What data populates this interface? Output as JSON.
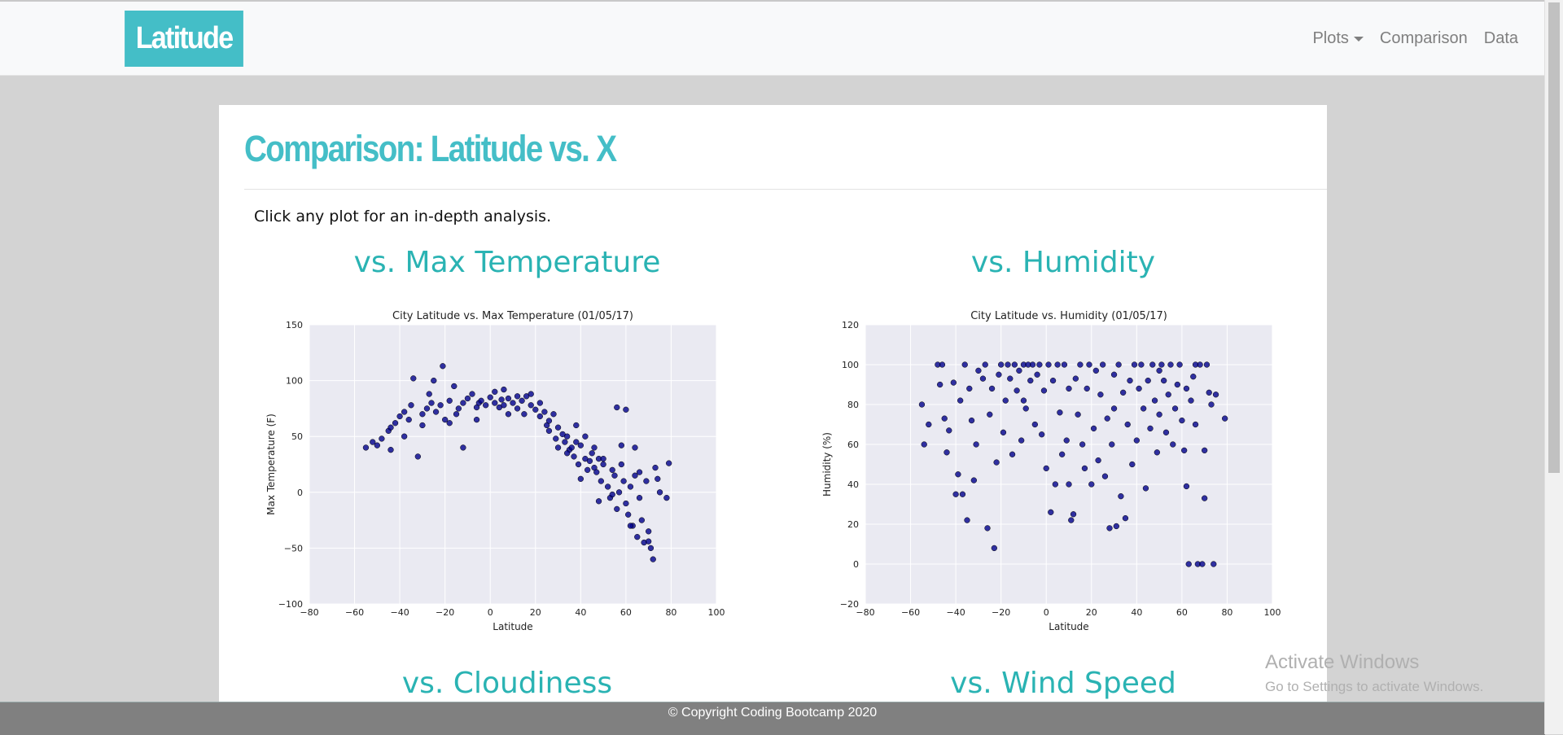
{
  "navbar": {
    "brand": "Latitude",
    "items": [
      {
        "label": "Plots",
        "has_dropdown": true
      },
      {
        "label": "Comparison"
      },
      {
        "label": "Data"
      }
    ]
  },
  "main": {
    "title": "Comparison: Latitude vs. X",
    "intro": "Click any plot for an in-depth analysis.",
    "sections": [
      {
        "heading": "vs. Max Temperature"
      },
      {
        "heading": "vs. Humidity"
      },
      {
        "heading": "vs. Cloudiness"
      },
      {
        "heading": "vs. Wind Speed"
      }
    ]
  },
  "footer": {
    "text": "© Copyright Coding Bootcamp 2020"
  },
  "watermark": {
    "line1": "Activate Windows",
    "line2": "Go to Settings to activate Windows."
  },
  "colors": {
    "accent": "#44bec7",
    "heading": "#2ab3b3",
    "marker": "#00008b",
    "plot_bg": "#eaeaf2",
    "footer": "#808080"
  },
  "chart_data": [
    {
      "type": "scatter",
      "title": "City Latitude vs. Max Temperature (01/05/17)",
      "xlabel": "Latitude",
      "ylabel": "Max Temperature (F)",
      "xlim": [
        -80,
        100
      ],
      "ylim": [
        -100,
        150
      ],
      "xticks": [
        "−80",
        "−60",
        "−40",
        "−20",
        "0",
        "20",
        "40",
        "60",
        "80",
        "100"
      ],
      "yticks": [
        "−100",
        "−50",
        "0",
        "50",
        "100",
        "150"
      ],
      "grid": true,
      "points": [
        [
          -55,
          40
        ],
        [
          -52,
          45
        ],
        [
          -48,
          48
        ],
        [
          -45,
          55
        ],
        [
          -44,
          58
        ],
        [
          -42,
          62
        ],
        [
          -40,
          68
        ],
        [
          -38,
          72
        ],
        [
          -36,
          65
        ],
        [
          -35,
          78
        ],
        [
          -34,
          102
        ],
        [
          -32,
          32
        ],
        [
          -30,
          70
        ],
        [
          -28,
          75
        ],
        [
          -26,
          80
        ],
        [
          -25,
          100
        ],
        [
          -24,
          72
        ],
        [
          -22,
          78
        ],
        [
          -21,
          113
        ],
        [
          -20,
          65
        ],
        [
          -18,
          82
        ],
        [
          -16,
          95
        ],
        [
          -15,
          70
        ],
        [
          -14,
          75
        ],
        [
          -12,
          80
        ],
        [
          -10,
          84
        ],
        [
          -8,
          88
        ],
        [
          -6,
          76
        ],
        [
          -5,
          80
        ],
        [
          -4,
          82
        ],
        [
          -2,
          78
        ],
        [
          0,
          85
        ],
        [
          2,
          80
        ],
        [
          4,
          76
        ],
        [
          5,
          83
        ],
        [
          6,
          78
        ],
        [
          8,
          84
        ],
        [
          10,
          80
        ],
        [
          12,
          75
        ],
        [
          14,
          82
        ],
        [
          15,
          70
        ],
        [
          16,
          86
        ],
        [
          18,
          78
        ],
        [
          20,
          74
        ],
        [
          22,
          68
        ],
        [
          24,
          72
        ],
        [
          25,
          60
        ],
        [
          26,
          55
        ],
        [
          28,
          70
        ],
        [
          29,
          48
        ],
        [
          30,
          58
        ],
        [
          32,
          52
        ],
        [
          33,
          45
        ],
        [
          34,
          50
        ],
        [
          35,
          38
        ],
        [
          36,
          40
        ],
        [
          37,
          32
        ],
        [
          38,
          45
        ],
        [
          39,
          25
        ],
        [
          40,
          42
        ],
        [
          42,
          30
        ],
        [
          43,
          20
        ],
        [
          44,
          28
        ],
        [
          45,
          35
        ],
        [
          46,
          22
        ],
        [
          47,
          18
        ],
        [
          48,
          30
        ],
        [
          49,
          10
        ],
        [
          50,
          25
        ],
        [
          52,
          5
        ],
        [
          53,
          -5
        ],
        [
          54,
          20
        ],
        [
          55,
          15
        ],
        [
          56,
          -15
        ],
        [
          57,
          0
        ],
        [
          58,
          25
        ],
        [
          59,
          10
        ],
        [
          60,
          -10
        ],
        [
          61,
          -20
        ],
        [
          62,
          5
        ],
        [
          63,
          -30
        ],
        [
          64,
          15
        ],
        [
          65,
          -40
        ],
        [
          66,
          -5
        ],
        [
          67,
          -25
        ],
        [
          68,
          -45
        ],
        [
          69,
          10
        ],
        [
          70,
          -35
        ],
        [
          71,
          -50
        ],
        [
          72,
          -60
        ],
        [
          73,
          22
        ],
        [
          75,
          0
        ],
        [
          78,
          -5
        ],
        [
          79,
          26
        ],
        [
          -44,
          38
        ],
        [
          -38,
          50
        ],
        [
          -30,
          60
        ],
        [
          -18,
          62
        ],
        [
          -12,
          40
        ],
        [
          -6,
          65
        ],
        [
          2,
          90
        ],
        [
          8,
          70
        ],
        [
          18,
          88
        ],
        [
          22,
          80
        ],
        [
          26,
          64
        ],
        [
          30,
          40
        ],
        [
          34,
          35
        ],
        [
          38,
          60
        ],
        [
          42,
          50
        ],
        [
          46,
          40
        ],
        [
          50,
          30
        ],
        [
          54,
          -2
        ],
        [
          58,
          42
        ],
        [
          62,
          -30
        ],
        [
          66,
          18
        ],
        [
          70,
          -44
        ],
        [
          74,
          12
        ],
        [
          -50,
          42
        ],
        [
          -27,
          88
        ],
        [
          6,
          92
        ],
        [
          12,
          86
        ],
        [
          40,
          12
        ],
        [
          48,
          -8
        ],
        [
          56,
          76
        ],
        [
          60,
          74
        ],
        [
          64,
          40
        ]
      ]
    },
    {
      "type": "scatter",
      "title": "City Latitude vs. Humidity (01/05/17)",
      "xlabel": "Latitude",
      "ylabel": "Humidity (%)",
      "xlim": [
        -80,
        100
      ],
      "ylim": [
        -20,
        120
      ],
      "xticks": [
        "−80",
        "−60",
        "−40",
        "−20",
        "0",
        "20",
        "40",
        "60",
        "80",
        "100"
      ],
      "yticks": [
        "−20",
        "0",
        "20",
        "40",
        "60",
        "80",
        "100",
        "120"
      ],
      "grid": true,
      "points": [
        [
          -55,
          80
        ],
        [
          -54,
          60
        ],
        [
          -52,
          70
        ],
        [
          -48,
          100
        ],
        [
          -47,
          90
        ],
        [
          -45,
          73
        ],
        [
          -44,
          56
        ],
        [
          -43,
          67
        ],
        [
          -41,
          91
        ],
        [
          -40,
          35
        ],
        [
          -39,
          45
        ],
        [
          -38,
          82
        ],
        [
          -37,
          35
        ],
        [
          -36,
          100
        ],
        [
          -35,
          22
        ],
        [
          -34,
          88
        ],
        [
          -33,
          72
        ],
        [
          -32,
          42
        ],
        [
          -31,
          60
        ],
        [
          -30,
          97
        ],
        [
          -28,
          93
        ],
        [
          -27,
          100
        ],
        [
          -26,
          18
        ],
        [
          -25,
          75
        ],
        [
          -24,
          88
        ],
        [
          -23,
          8
        ],
        [
          -22,
          51
        ],
        [
          -21,
          95
        ],
        [
          -20,
          100
        ],
        [
          -19,
          66
        ],
        [
          -18,
          82
        ],
        [
          -17,
          100
        ],
        [
          -16,
          93
        ],
        [
          -15,
          55
        ],
        [
          -14,
          100
        ],
        [
          -13,
          87
        ],
        [
          -12,
          97
        ],
        [
          -11,
          62
        ],
        [
          -10,
          100
        ],
        [
          -9,
          78
        ],
        [
          -8,
          100
        ],
        [
          -7,
          92
        ],
        [
          -6,
          100
        ],
        [
          -5,
          70
        ],
        [
          -4,
          95
        ],
        [
          -3,
          100
        ],
        [
          -2,
          65
        ],
        [
          -1,
          87
        ],
        [
          0,
          48
        ],
        [
          1,
          100
        ],
        [
          2,
          26
        ],
        [
          3,
          92
        ],
        [
          4,
          40
        ],
        [
          5,
          100
        ],
        [
          6,
          76
        ],
        [
          7,
          55
        ],
        [
          8,
          100
        ],
        [
          9,
          62
        ],
        [
          10,
          40
        ],
        [
          11,
          22
        ],
        [
          12,
          25
        ],
        [
          13,
          93
        ],
        [
          14,
          75
        ],
        [
          15,
          100
        ],
        [
          16,
          60
        ],
        [
          17,
          48
        ],
        [
          18,
          88
        ],
        [
          19,
          100
        ],
        [
          20,
          40
        ],
        [
          21,
          68
        ],
        [
          22,
          97
        ],
        [
          23,
          52
        ],
        [
          24,
          85
        ],
        [
          25,
          100
        ],
        [
          26,
          44
        ],
        [
          27,
          73
        ],
        [
          28,
          18
        ],
        [
          29,
          60
        ],
        [
          30,
          95
        ],
        [
          31,
          19
        ],
        [
          32,
          100
        ],
        [
          33,
          34
        ],
        [
          34,
          86
        ],
        [
          35,
          23
        ],
        [
          36,
          70
        ],
        [
          37,
          92
        ],
        [
          38,
          50
        ],
        [
          39,
          100
        ],
        [
          40,
          62
        ],
        [
          41,
          88
        ],
        [
          42,
          100
        ],
        [
          43,
          78
        ],
        [
          44,
          38
        ],
        [
          45,
          92
        ],
        [
          46,
          68
        ],
        [
          47,
          100
        ],
        [
          48,
          82
        ],
        [
          49,
          56
        ],
        [
          50,
          75
        ],
        [
          51,
          100
        ],
        [
          52,
          92
        ],
        [
          53,
          66
        ],
        [
          54,
          85
        ],
        [
          55,
          100
        ],
        [
          56,
          60
        ],
        [
          57,
          78
        ],
        [
          58,
          90
        ],
        [
          59,
          100
        ],
        [
          60,
          72
        ],
        [
          61,
          57
        ],
        [
          62,
          39
        ],
        [
          63,
          0
        ],
        [
          64,
          82
        ],
        [
          65,
          94
        ],
        [
          66,
          70
        ],
        [
          67,
          0
        ],
        [
          68,
          100
        ],
        [
          69,
          0
        ],
        [
          70,
          33
        ],
        [
          71,
          100
        ],
        [
          72,
          86
        ],
        [
          73,
          80
        ],
        [
          74,
          0
        ],
        [
          75,
          85
        ],
        [
          79,
          73
        ],
        [
          -46,
          100
        ],
        [
          -10,
          82
        ],
        [
          10,
          88
        ],
        [
          30,
          78
        ],
        [
          50,
          97
        ],
        [
          62,
          88
        ],
        [
          66,
          100
        ],
        [
          70,
          57
        ]
      ]
    }
  ]
}
